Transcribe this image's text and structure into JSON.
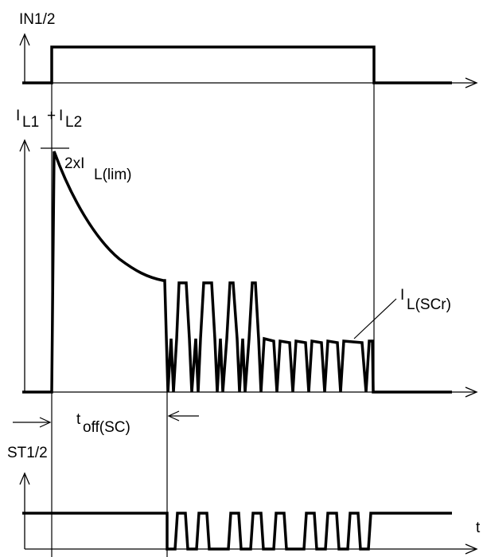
{
  "labels": {
    "in": "IN1/2",
    "il_i1": "I",
    "il_sub1": "L1",
    "il_plus": "+",
    "il_i2": "I",
    "il_sub2": "L2",
    "lim_main": "2xI",
    "lim_sub": "L(lim)",
    "scr_main": "I",
    "scr_sub": "L(SCr)",
    "toff_main": "t",
    "toff_sub": "off(SC)",
    "st": "ST1/2",
    "t": "t"
  }
}
